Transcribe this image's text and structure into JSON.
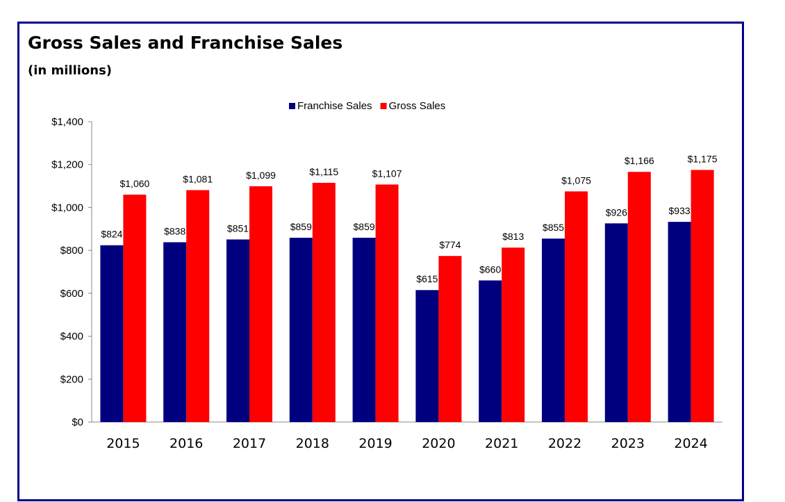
{
  "chart_data": {
    "type": "bar",
    "title": "Gross Sales and Franchise Sales",
    "subtitle": "(in millions)",
    "xlabel": "",
    "ylabel": "",
    "categories": [
      "2015",
      "2016",
      "2017",
      "2018",
      "2019",
      "2020",
      "2021",
      "2022",
      "2023",
      "2024"
    ],
    "series": [
      {
        "name": "Franchise Sales",
        "color": "#00007f",
        "values": [
          824,
          838,
          851,
          859,
          859,
          615,
          660,
          855,
          926,
          933
        ],
        "labels": [
          "$824",
          "$838",
          "$851",
          "$859",
          "$859",
          "$615",
          "$660",
          "$855",
          "$926",
          "$933"
        ]
      },
      {
        "name": "Gross Sales",
        "color": "#ff0000",
        "values": [
          1060,
          1081,
          1099,
          1115,
          1107,
          774,
          813,
          1075,
          1166,
          1175
        ],
        "labels": [
          "$1,060",
          "$1,081",
          "$1,099",
          "$1,115",
          "$1,107",
          "$774",
          "$813",
          "$1,075",
          "$1,166",
          "$1,175"
        ]
      }
    ],
    "ylim": [
      0,
      1400
    ],
    "yticks": [
      0,
      200,
      400,
      600,
      800,
      1000,
      1200,
      1400
    ],
    "ytick_labels": [
      "$0",
      "$200",
      "$400",
      "$600",
      "$800",
      "$1,000",
      "$1,200",
      "$1,400"
    ],
    "legend_position": "top-center",
    "grid": false
  }
}
